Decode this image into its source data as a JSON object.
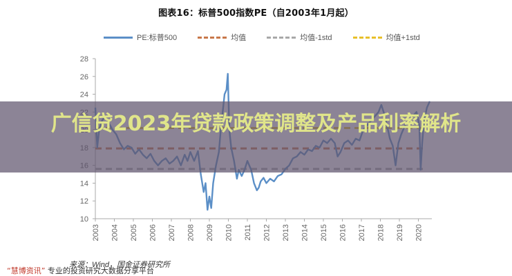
{
  "chart_data": {
    "type": "line",
    "title": "图表16：标普500指数PE（自2003年1月起）",
    "xlabel": "",
    "ylabel": "",
    "ylim": [
      10,
      28
    ],
    "yticks": [
      10,
      12,
      14,
      16,
      18,
      20,
      22,
      24,
      26,
      28
    ],
    "xticks": [
      "2003",
      "2004",
      "2005",
      "2006",
      "2007",
      "2008",
      "2009",
      "2010",
      "2011",
      "2012",
      "2013",
      "2014",
      "2015",
      "2016",
      "2017",
      "2018",
      "2019",
      "2020"
    ],
    "grid": false,
    "legend_position": "top",
    "series": [
      {
        "name": "PE:标普500",
        "style": "solid",
        "color": "#5b8fc7",
        "x": [
          2003.0,
          2003.1,
          2003.2,
          2003.35,
          2003.5,
          2003.7,
          2003.9,
          2004.1,
          2004.3,
          2004.5,
          2004.7,
          2004.9,
          2005.1,
          2005.3,
          2005.5,
          2005.7,
          2005.9,
          2006.1,
          2006.3,
          2006.5,
          2006.7,
          2006.9,
          2007.1,
          2007.3,
          2007.5,
          2007.7,
          2007.85,
          2008.0,
          2008.2,
          2008.4,
          2008.55,
          2008.7,
          2008.8,
          2008.9,
          2009.0,
          2009.1,
          2009.2,
          2009.35,
          2009.5,
          2009.6,
          2009.7,
          2009.8,
          2009.9,
          2009.97,
          2010.05,
          2010.15,
          2010.3,
          2010.45,
          2010.55,
          2010.7,
          2010.85,
          2011.0,
          2011.2,
          2011.35,
          2011.5,
          2011.6,
          2011.7,
          2011.85,
          2012.0,
          2012.2,
          2012.4,
          2012.6,
          2012.8,
          2013.0,
          2013.2,
          2013.4,
          2013.6,
          2013.8,
          2014.0,
          2014.2,
          2014.4,
          2014.6,
          2014.8,
          2015.0,
          2015.2,
          2015.4,
          2015.6,
          2015.75,
          2015.9,
          2016.1,
          2016.3,
          2016.5,
          2016.7,
          2016.9,
          2017.1,
          2017.3,
          2017.5,
          2017.7,
          2017.9,
          2018.05,
          2018.2,
          2018.35,
          2018.5,
          2018.65,
          2018.8,
          2018.95,
          2019.1,
          2019.3,
          2019.5,
          2019.7,
          2019.9,
          2020.05,
          2020.12,
          2020.2,
          2020.3,
          2020.45,
          2020.6
        ],
        "y": [
          22.5,
          18.0,
          20.0,
          21.0,
          21.5,
          20.8,
          20.0,
          19.5,
          18.5,
          17.8,
          18.2,
          18.0,
          17.3,
          17.8,
          17.2,
          16.8,
          17.3,
          16.5,
          16.0,
          16.5,
          16.8,
          16.2,
          16.5,
          17.0,
          16.0,
          17.2,
          16.5,
          17.5,
          16.5,
          17.6,
          15.0,
          13.0,
          14.0,
          11.0,
          12.5,
          11.2,
          14.0,
          16.0,
          17.5,
          20.0,
          22.0,
          24.0,
          24.5,
          26.3,
          20.0,
          18.0,
          16.5,
          14.5,
          15.5,
          14.8,
          15.5,
          16.5,
          15.5,
          14.0,
          13.2,
          13.5,
          14.2,
          14.6,
          14.0,
          14.5,
          14.2,
          14.8,
          15.0,
          15.6,
          16.0,
          16.8,
          17.0,
          17.5,
          17.2,
          17.8,
          17.6,
          18.2,
          18.0,
          18.8,
          18.5,
          19.0,
          18.5,
          17.0,
          17.5,
          18.5,
          18.8,
          18.3,
          19.0,
          18.8,
          20.0,
          20.5,
          21.0,
          21.5,
          22.0,
          22.8,
          21.8,
          20.5,
          19.0,
          18.2,
          16.0,
          18.5,
          19.5,
          20.5,
          21.0,
          21.5,
          22.0,
          20.5,
          15.5,
          18.5,
          21.0,
          22.5,
          23.2
        ]
      },
      {
        "name": "均值",
        "style": "dashed",
        "color": "#c8784a",
        "value": 17.9
      },
      {
        "name": "均值-1std",
        "style": "dashed",
        "color": "#a8a8a8",
        "value": 15.6
      },
      {
        "name": "均值+1std",
        "style": "dashed",
        "color": "#e8c02a",
        "value": 20.2
      }
    ]
  },
  "header": {
    "title": "图表16：标普500指数PE（自2003年1月起）"
  },
  "legend": [
    {
      "label": "PE:标普500",
      "color": "#5b8fc7",
      "style": "solid"
    },
    {
      "label": "均值",
      "color": "#c8784a",
      "style": "dashed"
    },
    {
      "label": "均值-1std",
      "color": "#a8a8a8",
      "style": "dashed"
    },
    {
      "label": "均值+1std",
      "color": "#e8c02a",
      "style": "dashed"
    }
  ],
  "overlay": {
    "banner_text": "广信贷2023年贷款政策调整及产品利率解析"
  },
  "footer": {
    "source": "来源：Wind，国金证券研究所",
    "watermark_brand": "“慧博资讯”",
    "watermark_text": "专业的投资研究大数据分享平台"
  }
}
